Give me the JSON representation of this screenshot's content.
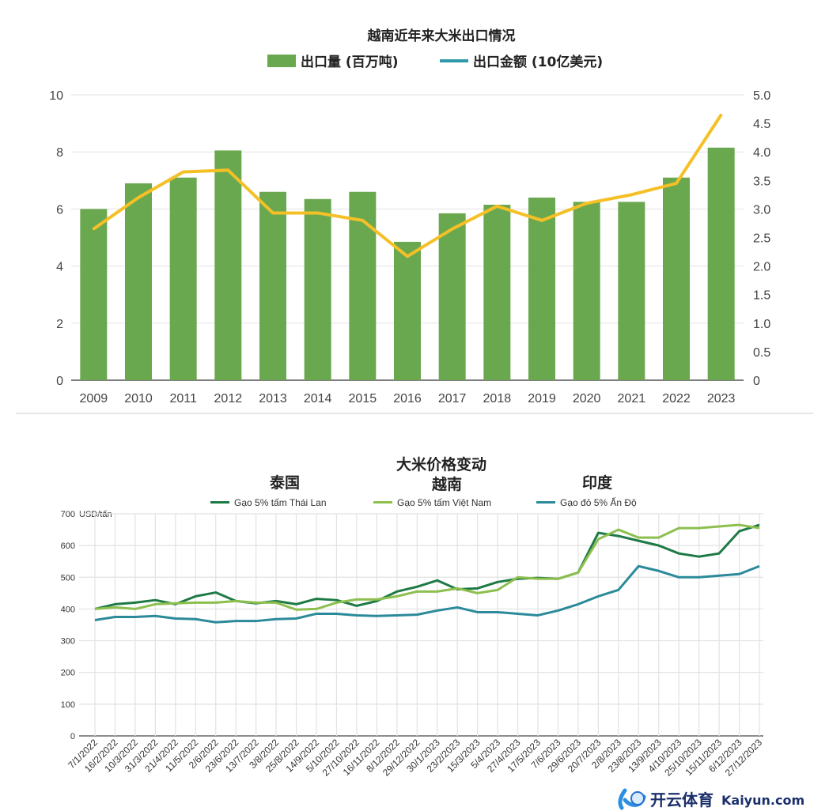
{
  "chart_data": [
    {
      "type": "bar+line",
      "title": "越南近年来大米出口情况",
      "legend": [
        {
          "name": "出口量 (百万吨)",
          "kind": "bar",
          "color": "#6aa84f"
        },
        {
          "name": "出口金额 (10亿美元)",
          "kind": "line",
          "color": "#2e9aa8"
        }
      ],
      "legend_placement": "top",
      "categories": [
        "2009",
        "2010",
        "2011",
        "2012",
        "2013",
        "2014",
        "2015",
        "2016",
        "2017",
        "2018",
        "2019",
        "2020",
        "2021",
        "2022",
        "2023"
      ],
      "series": [
        {
          "name": "出口量 (百万吨)",
          "axis": "left",
          "values": [
            6.0,
            6.9,
            7.1,
            8.05,
            6.6,
            6.35,
            6.6,
            4.85,
            5.85,
            6.15,
            6.4,
            6.25,
            6.25,
            7.1,
            8.15
          ]
        },
        {
          "name": "出口金额 (10亿美元)",
          "axis": "right",
          "line_color": "#f5c026",
          "values": [
            2.65,
            3.2,
            3.65,
            3.68,
            2.93,
            2.93,
            2.8,
            2.17,
            2.65,
            3.05,
            2.8,
            3.1,
            3.25,
            3.45,
            4.65
          ]
        }
      ],
      "ylim_left": [
        0,
        10
      ],
      "yticks_left": [
        "0",
        "2",
        "4",
        "6",
        "8",
        "10"
      ],
      "ylim_right": [
        0,
        5
      ],
      "yticks_right": [
        "0",
        "0.5",
        "1.0",
        "1.5",
        "2.0",
        "2.5",
        "3.0",
        "3.5",
        "4.0",
        "4.5",
        "5.0"
      ],
      "grid": true
    },
    {
      "type": "line",
      "title": "大米价格变动",
      "annotations": [
        "泰国",
        "越南",
        "印度"
      ],
      "ylabel": "USD/tấn",
      "ylim": [
        0,
        700
      ],
      "yticks": [
        "0",
        "100",
        "200",
        "300",
        "400",
        "500",
        "600",
        "700"
      ],
      "grid": true,
      "legend_placement": "top",
      "categories": [
        "7/1/2022",
        "16/2/2022",
        "10/3/2022",
        "31/3/2022",
        "21/4/2022",
        "11/5/2022",
        "2/6/2022",
        "23/6/2022",
        "13/7/2022",
        "3/8/2022",
        "25/8/2022",
        "14/9/2022",
        "5/10/2022",
        "27/10/2022",
        "16/11/2022",
        "8/12/2022",
        "29/12/2022",
        "30/1/2023",
        "23/2/2023",
        "15/3/2023",
        "5/4/2023",
        "27/4/2023",
        "17/5/2023",
        "7/6/2023",
        "29/6/2023",
        "20/7/2023",
        "2/8/2023",
        "23/8/2023",
        "13/9/2023",
        "4/10/2023",
        "25/10/2023",
        "15/11/2023",
        "6/12/2023",
        "27/12/2023"
      ],
      "series": [
        {
          "name": "Gạo 5% tấm Thái Lan",
          "color": "#1e7a45",
          "values": [
            400,
            415,
            420,
            428,
            415,
            440,
            452,
            425,
            418,
            425,
            415,
            432,
            428,
            410,
            425,
            455,
            470,
            490,
            462,
            465,
            485,
            495,
            498,
            495,
            515,
            640,
            630,
            615,
            600,
            575,
            565,
            575,
            645,
            665
          ]
        },
        {
          "name": "Gạo 5% tấm Việt Nam",
          "color": "#8dbf4e",
          "values": [
            400,
            405,
            400,
            415,
            418,
            420,
            420,
            425,
            420,
            420,
            398,
            400,
            420,
            430,
            430,
            440,
            455,
            455,
            465,
            450,
            460,
            500,
            495,
            495,
            515,
            620,
            650,
            625,
            625,
            655,
            655,
            660,
            665,
            655
          ]
        },
        {
          "name": "Gạo đỏ 5% Ấn Độ",
          "color": "#2b8a9a",
          "values": [
            365,
            375,
            375,
            378,
            370,
            368,
            358,
            362,
            362,
            368,
            370,
            385,
            385,
            380,
            378,
            380,
            382,
            395,
            405,
            390,
            390,
            385,
            380,
            395,
            415,
            440,
            460,
            535,
            520,
            500,
            500,
            505,
            510,
            535
          ]
        }
      ]
    }
  ],
  "watermark": {
    "cn": "开云体育",
    "en": "Kaiyun.com"
  }
}
